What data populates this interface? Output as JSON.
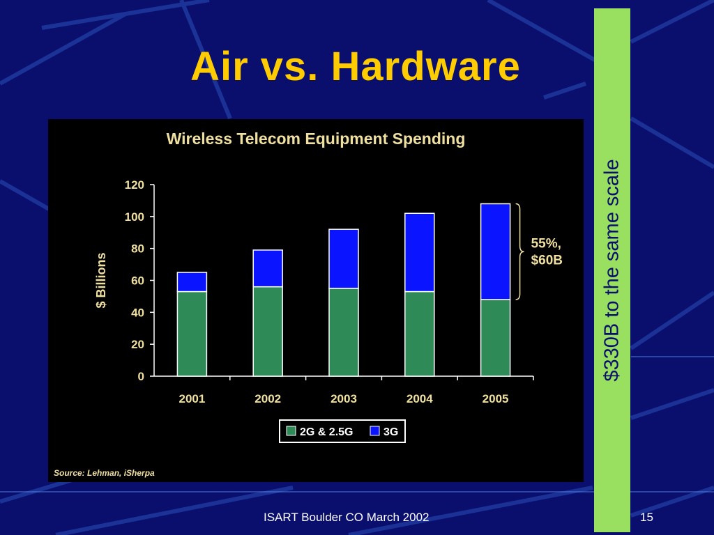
{
  "slide": {
    "title": "Air vs. Hardware",
    "side_note": "$330B to the same scale",
    "footer": "ISART Boulder CO March 2002",
    "page_number": "15",
    "source": "Source: Lehman, iSherpa"
  },
  "colors": {
    "background": "#0a0f6e",
    "title": "#ffcc00",
    "side_bar": "#99e060",
    "series_2g": "#2e8b57",
    "series_3g": "#0a14ff",
    "chart_text": "#f0e0a0"
  },
  "chart_data": {
    "type": "bar",
    "stacked": true,
    "title": "Wireless Telecom Equipment Spending",
    "xlabel": "",
    "ylabel": "$ Billions",
    "categories": [
      "2001",
      "2002",
      "2003",
      "2004",
      "2005"
    ],
    "series": [
      {
        "name": "2G & 2.5G",
        "values": [
          53,
          56,
          55,
          53,
          48
        ]
      },
      {
        "name": "3G",
        "values": [
          12,
          23,
          37,
          49,
          60
        ]
      }
    ],
    "ylim": [
      0,
      120
    ],
    "yticks": [
      0,
      20,
      40,
      60,
      80,
      100,
      120
    ],
    "grid": false,
    "legend": "bottom-center",
    "annotation": {
      "lines": [
        "55%,",
        "$60B"
      ],
      "category": "2005"
    }
  }
}
